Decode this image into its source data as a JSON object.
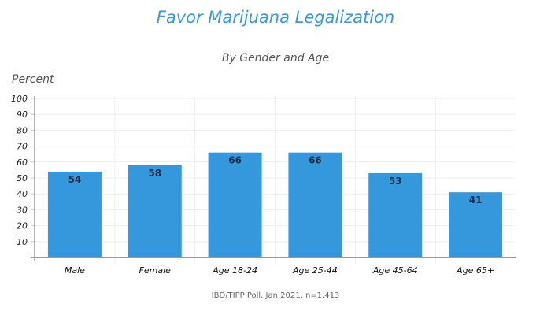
{
  "chart_data": {
    "type": "bar",
    "title": "Favor Marijuana Legalization",
    "subtitle": "By Gender and Age",
    "xlabel": "",
    "ylabel": "Percent",
    "categories": [
      "Male",
      "Female",
      "Age 18-24",
      "Age 25-44",
      "Age 45-64",
      "Age 65+"
    ],
    "values": [
      54,
      58,
      66,
      66,
      53,
      41
    ],
    "ylim": [
      0,
      100
    ],
    "yticks": [
      10,
      20,
      30,
      40,
      50,
      60,
      70,
      80,
      90,
      100
    ],
    "grid": true,
    "legend": null,
    "data_labels": true,
    "bar_color": "#3597dc",
    "source": "IBD/TIPP Poll, Jan 2021, n=1,413"
  },
  "colors": {
    "title": "#3a97d9",
    "bar": "#3597dc",
    "grid": "#eeeeee",
    "axis": "#999999"
  }
}
